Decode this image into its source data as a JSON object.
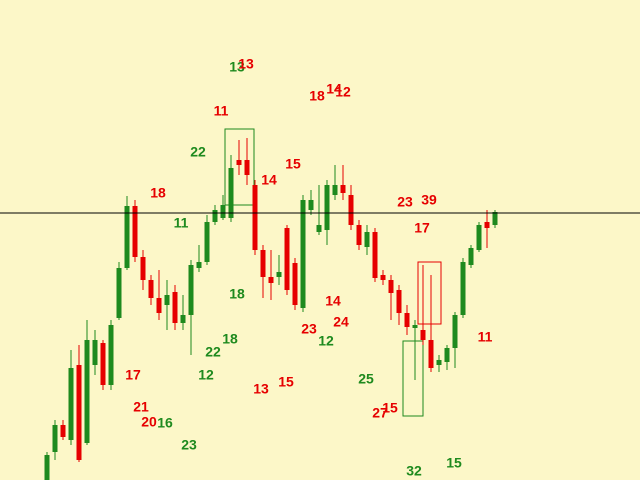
{
  "chart_data": {
    "type": "candlestick",
    "up_color": "#1e8a1e",
    "down_color": "#e60000",
    "line_color": "#000000",
    "ylim": [
      0,
      480
    ],
    "hline": 267,
    "open": [
      0,
      28,
      55,
      40,
      115,
      37,
      115,
      137,
      95,
      162,
      212,
      274,
      223,
      200,
      182,
      175,
      188,
      157,
      165,
      212,
      218,
      258,
      262,
      262,
      320,
      320,
      295,
      230,
      203,
      203,
      252,
      217,
      172,
      270,
      248,
      250,
      285,
      295,
      285,
      255,
      233,
      248,
      205,
      200,
      190,
      167,
      152,
      150,
      140,
      115,
      118,
      132,
      165,
      215,
      230,
      258,
      255
    ],
    "high": [
      28,
      60,
      60,
      130,
      135,
      160,
      150,
      140,
      160,
      218,
      284,
      280,
      230,
      205,
      210,
      200,
      195,
      185,
      220,
      235,
      265,
      275,
      285,
      325,
      340,
      342,
      300,
      235,
      230,
      225,
      255,
      222,
      285,
      290,
      295,
      300,
      315,
      315,
      295,
      260,
      255,
      252,
      210,
      205,
      195,
      175,
      160,
      215,
      205,
      125,
      135,
      168,
      222,
      235,
      258,
      270,
      270
    ],
    "low": [
      0,
      20,
      40,
      35,
      18,
      35,
      105,
      90,
      90,
      160,
      210,
      218,
      190,
      175,
      160,
      150,
      150,
      150,
      125,
      208,
      215,
      255,
      260,
      258,
      305,
      295,
      225,
      182,
      180,
      195,
      185,
      170,
      168,
      265,
      245,
      235,
      280,
      280,
      250,
      230,
      225,
      198,
      195,
      160,
      155,
      145,
      100,
      135,
      108,
      108,
      110,
      112,
      162,
      212,
      228,
      232,
      252
    ],
    "close": [
      25,
      55,
      43,
      112,
      20,
      140,
      140,
      95,
      155,
      212,
      274,
      223,
      200,
      182,
      167,
      185,
      157,
      165,
      215,
      218,
      258,
      270,
      275,
      312,
      315,
      305,
      230,
      203,
      197,
      208,
      190,
      175,
      280,
      280,
      255,
      295,
      295,
      287,
      255,
      235,
      248,
      202,
      200,
      187,
      167,
      153,
      155,
      140,
      112,
      120,
      132,
      165,
      218,
      232,
      255,
      252,
      268
    ],
    "annotations": [
      {
        "value": 13,
        "color": "#1e8a1e"
      },
      {
        "value": 13,
        "color": "#e60000"
      },
      {
        "value": 11,
        "color": "#e60000"
      },
      {
        "value": 22,
        "color": "#1e8a1e"
      },
      {
        "value": 18,
        "color": "#e60000"
      },
      {
        "value": 14,
        "color": "#e60000"
      },
      {
        "value": 12,
        "color": "#e60000"
      },
      {
        "value": 15,
        "color": "#e60000"
      },
      {
        "value": 14,
        "color": "#e60000"
      },
      {
        "value": 18,
        "color": "#e60000"
      },
      {
        "value": 11,
        "color": "#1e8a1e"
      },
      {
        "value": 23,
        "color": "#e60000"
      },
      {
        "value": 39,
        "color": "#e60000"
      },
      {
        "value": 17,
        "color": "#e60000"
      },
      {
        "value": 18,
        "color": "#1e8a1e"
      },
      {
        "value": 14,
        "color": "#e60000"
      },
      {
        "value": 24,
        "color": "#e60000"
      },
      {
        "value": 23,
        "color": "#e60000"
      },
      {
        "value": 12,
        "color": "#1e8a1e"
      },
      {
        "value": 11,
        "color": "#e60000"
      },
      {
        "value": 18,
        "color": "#1e8a1e"
      },
      {
        "value": 22,
        "color": "#1e8a1e"
      },
      {
        "value": 17,
        "color": "#e60000"
      },
      {
        "value": 12,
        "color": "#1e8a1e"
      },
      {
        "value": 25,
        "color": "#1e8a1e"
      },
      {
        "value": 13,
        "color": "#e60000"
      },
      {
        "value": 15,
        "color": "#e60000"
      },
      {
        "value": 21,
        "color": "#e60000"
      },
      {
        "value": 27,
        "color": "#e60000"
      },
      {
        "value": 15,
        "color": "#e60000"
      },
      {
        "value": 20,
        "color": "#e60000"
      },
      {
        "value": 16,
        "color": "#1e8a1e"
      },
      {
        "value": 23,
        "color": "#1e8a1e"
      },
      {
        "value": 32,
        "color": "#1e8a1e"
      },
      {
        "value": 15,
        "color": "#1e8a1e"
      }
    ]
  }
}
